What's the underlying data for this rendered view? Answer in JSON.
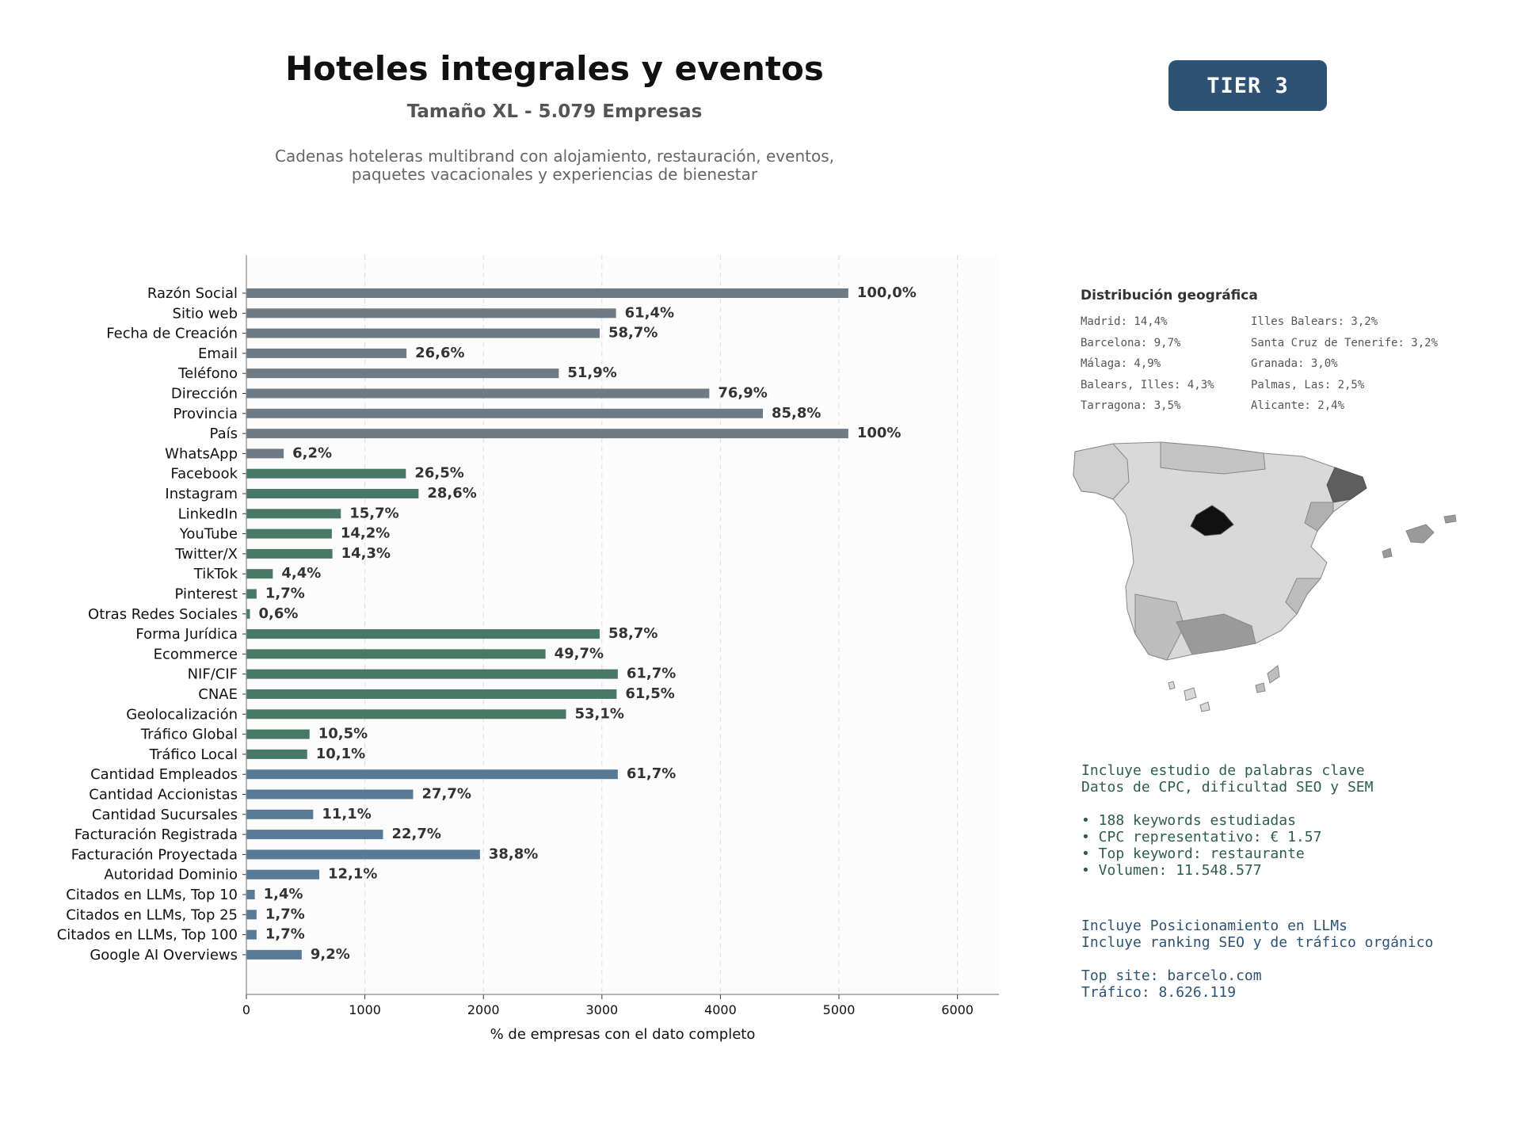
{
  "header": {
    "title": "Hoteles integrales y eventos",
    "subtitle": "Tamaño XL - 5.079 Empresas",
    "description_line1": "Cadenas hoteleras multibrand con alojamiento, restauración, eventos,",
    "description_line2": "paquetes vacacionales y experiencias de bienestar",
    "tier": "TIER 3"
  },
  "chart_data": {
    "type": "bar",
    "orientation": "horizontal",
    "xlabel": "% de empresas con el dato completo",
    "xlim": [
      0,
      6350
    ],
    "xticks": [
      0,
      1000,
      2000,
      3000,
      4000,
      5000,
      6000
    ],
    "grid": "vertical dashed",
    "colors": {
      "basic": "#6e7a84",
      "digital": "#4a7866",
      "financial": "#587a96"
    },
    "categories": [
      "Razón Social",
      "Sitio web",
      "Fecha de Creación",
      "Email",
      "Teléfono",
      "Dirección",
      "Provincia",
      "País",
      "WhatsApp",
      "Facebook",
      "Instagram",
      "LinkedIn",
      "YouTube",
      "Twitter/X",
      "TikTok",
      "Pinterest",
      "Otras Redes Sociales",
      "Forma Jurídica",
      "Ecommerce",
      "NIF/CIF",
      "CNAE",
      "Geolocalización",
      "Tráfico Global",
      "Tráfico Local",
      "Cantidad Empleados",
      "Cantidad Accionistas",
      "Cantidad Sucursales",
      "Facturación Registrada",
      "Facturación Proyectada",
      "Autoridad Dominio",
      "Citados en LLMs, Top 10",
      "Citados en LLMs, Top 25",
      "Citados en LLMs, Top 100",
      "Google AI Overviews"
    ],
    "values": [
      5079,
      3119,
      2981,
      1351,
      2636,
      3906,
      4358,
      5079,
      315,
      1346,
      1453,
      797,
      721,
      726,
      223,
      86,
      30,
      2981,
      2524,
      3134,
      3124,
      2697,
      533,
      513,
      3134,
      1407,
      564,
      1153,
      1971,
      615,
      71,
      86,
      86,
      467
    ],
    "labels": [
      "100,0%",
      "61,4%",
      "58,7%",
      "26,6%",
      "51,9%",
      "76,9%",
      "85,8%",
      "100%",
      "6,2%",
      "26,5%",
      "28,6%",
      "15,7%",
      "14,2%",
      "14,3%",
      "4,4%",
      "1,7%",
      "0,6%",
      "58,7%",
      "49,7%",
      "61,7%",
      "61,5%",
      "53,1%",
      "10,5%",
      "10,1%",
      "61,7%",
      "27,7%",
      "11,1%",
      "22,7%",
      "38,8%",
      "12,1%",
      "1,4%",
      "1,7%",
      "1,7%",
      "9,2%"
    ],
    "groups": [
      "basic",
      "basic",
      "basic",
      "basic",
      "basic",
      "basic",
      "basic",
      "basic",
      "basic",
      "digital",
      "digital",
      "digital",
      "digital",
      "digital",
      "digital",
      "digital",
      "digital",
      "digital",
      "digital",
      "digital",
      "digital",
      "digital",
      "digital",
      "digital",
      "financial",
      "financial",
      "financial",
      "financial",
      "financial",
      "financial",
      "financial",
      "financial",
      "financial",
      "financial"
    ]
  },
  "geo": {
    "title": "Distribución geográfica",
    "col1": [
      "Madrid: 14,4%",
      "Barcelona: 9,7%",
      "Málaga: 4,9%",
      "Balears, Illes: 4,3%",
      "Tarragona: 3,5%"
    ],
    "col2": [
      "Illes Balears: 3,2%",
      "Santa Cruz de Tenerife: 3,2%",
      "Granada: 3,0%",
      "Palmas, Las: 2,5%",
      "Alicante: 2,4%"
    ],
    "map_colors": {
      "base": "#d9d9d9",
      "madrid": "#111111",
      "barcelona": "#5e5e5e",
      "medium": "#9a9a9a",
      "light": "#bdbdbd",
      "border": "#888888"
    }
  },
  "seo": {
    "line1": "Incluye estudio de palabras clave",
    "line2": "Datos de CPC, dificultad SEO y SEM",
    "bullets": [
      "• 188 keywords estudiadas",
      "• CPC representativo: € 1.57",
      "• Top keyword: restaurante",
      "• Volumen: 11.548.577"
    ]
  },
  "llm": {
    "line1": "Incluye Posicionamiento en LLMs",
    "line2": "Incluye ranking SEO y de tráfico orgánico",
    "top_site": "Top site: barcelo.com",
    "traffic": "Tráfico: 8.626.119"
  }
}
